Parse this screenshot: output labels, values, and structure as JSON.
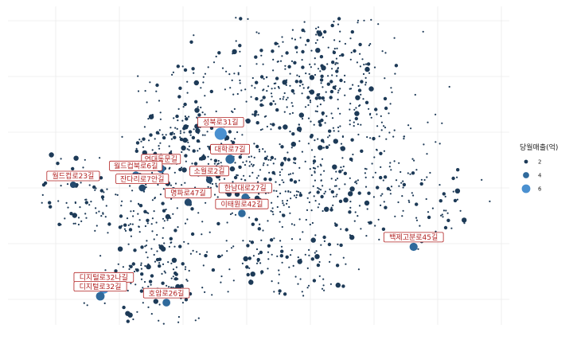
{
  "chart_data": {
    "type": "scatter",
    "title": "",
    "xlabel": "",
    "ylabel": "",
    "grid": true,
    "legend": {
      "title": "당월매출(억)",
      "placement": "right",
      "entries": [
        {
          "label": "2",
          "value": 2,
          "color": "#1d3a57"
        },
        {
          "label": "4",
          "value": 4,
          "color": "#2f6a9c"
        },
        {
          "label": "6",
          "value": 6,
          "color": "#4a90d0"
        }
      ]
    },
    "xlim": [
      0,
      100
    ],
    "ylim": [
      0,
      100
    ],
    "labeled_points": [
      {
        "name": "성북로31길",
        "x": 41.5,
        "y": 60.0,
        "value": 6.4
      },
      {
        "name": "연대동문길",
        "x": 29.4,
        "y": 49.0,
        "value": 4.0
      },
      {
        "name": "월드컵북로6길",
        "x": 24.3,
        "y": 47.0,
        "value": 3.5
      },
      {
        "name": "대학로7길",
        "x": 43.4,
        "y": 52.0,
        "value": 4.5
      },
      {
        "name": "소월로2길",
        "x": 39.2,
        "y": 45.5,
        "value": 3.0
      },
      {
        "name": "월드컵로23길",
        "x": 11.6,
        "y": 44.0,
        "value": 2.8
      },
      {
        "name": "잔다리로7안길",
        "x": 25.6,
        "y": 43.0,
        "value": 3.2
      },
      {
        "name": "한남대로27길",
        "x": 46.5,
        "y": 40.0,
        "value": 3.8
      },
      {
        "name": "명파로47길",
        "x": 34.9,
        "y": 38.5,
        "value": 3.4
      },
      {
        "name": "이태원로42길",
        "x": 45.8,
        "y": 35.0,
        "value": 3.6
      },
      {
        "name": "백제고분로45길",
        "x": 80.6,
        "y": 24.5,
        "value": 3.9
      },
      {
        "name": "디지털로32나길",
        "x": 17.8,
        "y": 11.5,
        "value": 5.5
      },
      {
        "name": "디지털로32길",
        "x": 17.1,
        "y": 9.0,
        "value": 4.2
      },
      {
        "name": "호암로26길",
        "x": 30.5,
        "y": 7.0,
        "value": 3.7
      }
    ],
    "background_points_note": ""
  }
}
